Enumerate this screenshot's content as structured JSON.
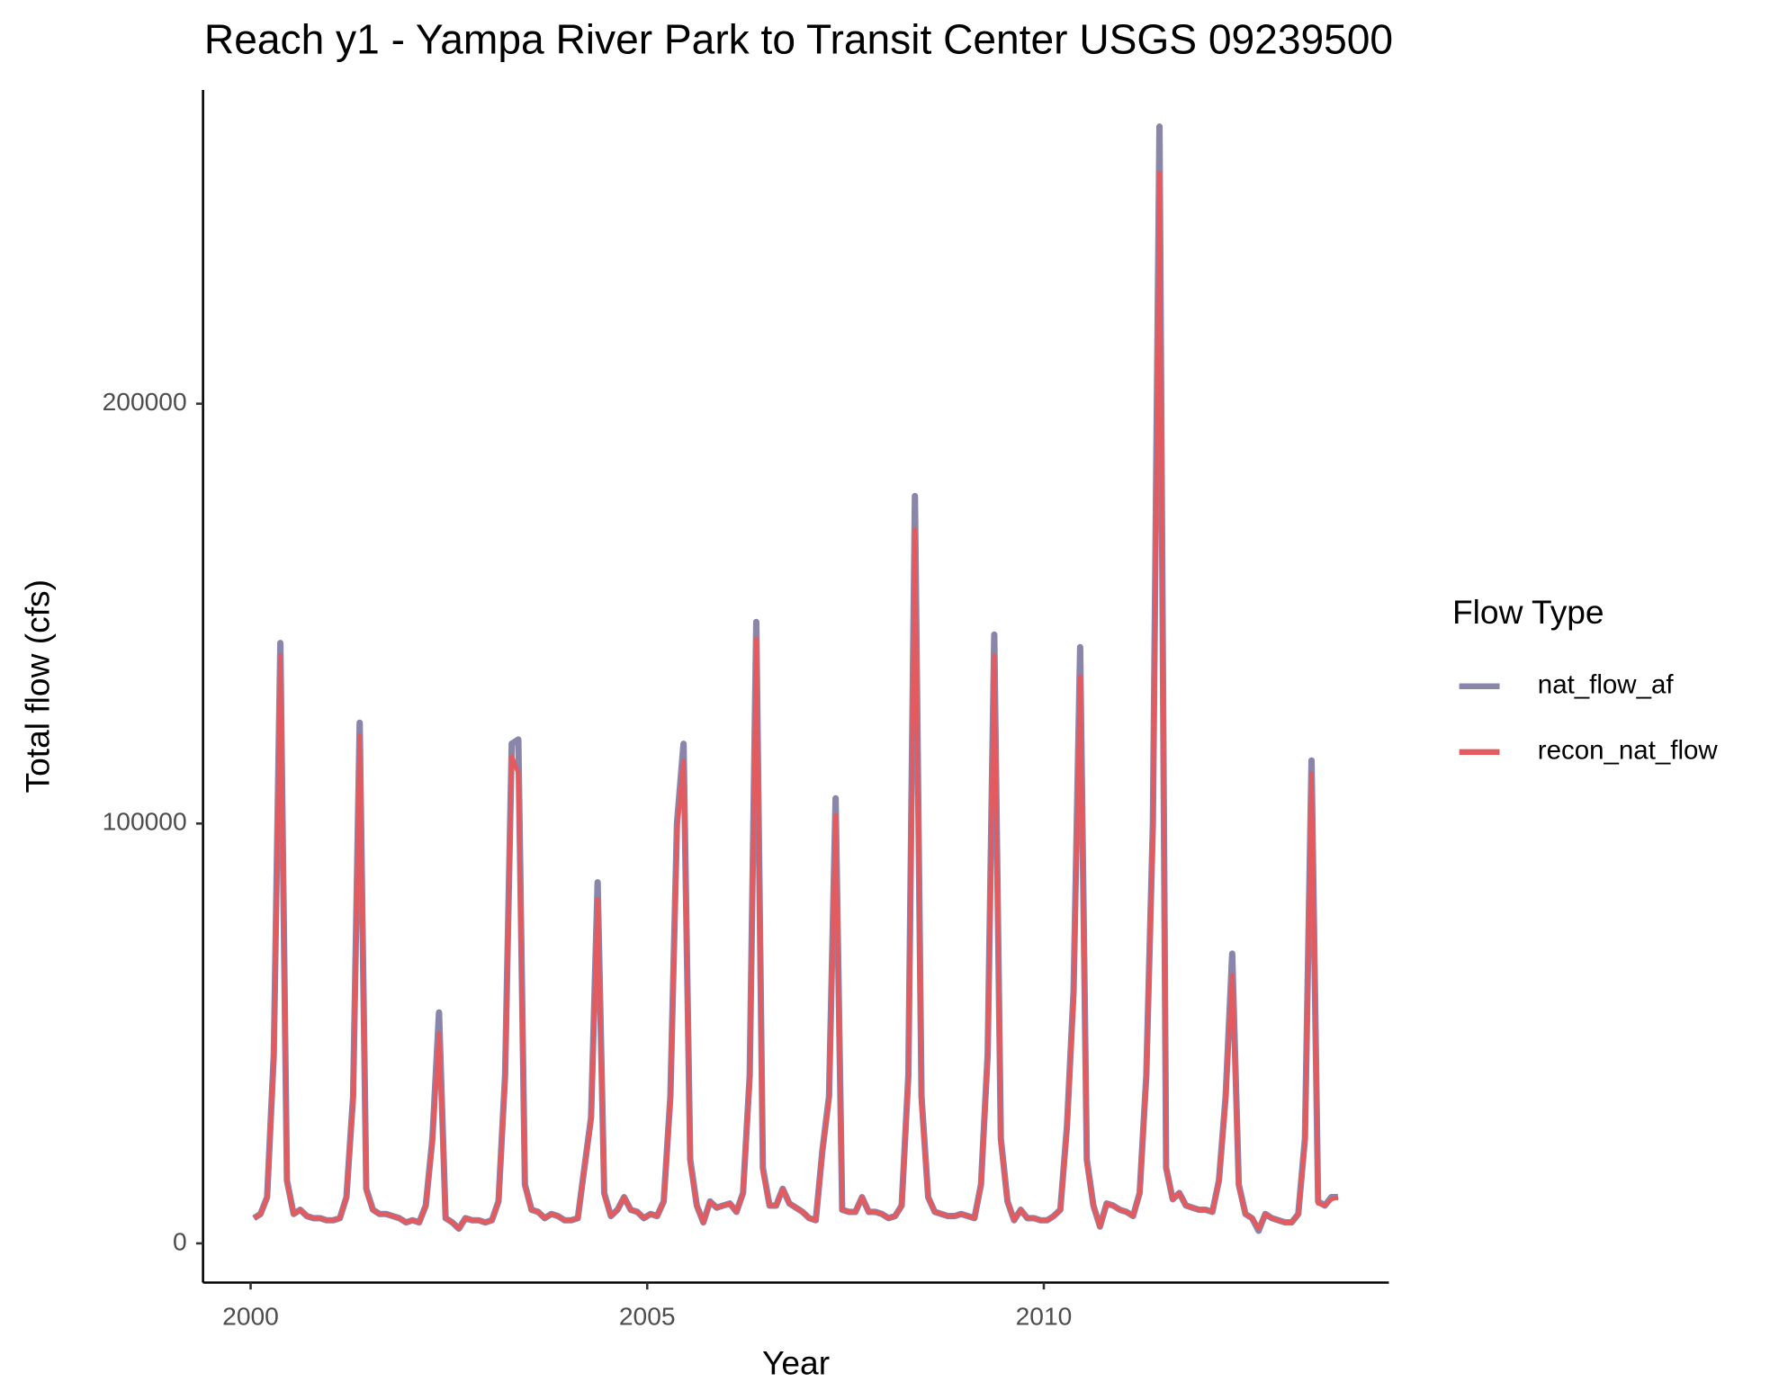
{
  "chart_data": {
    "type": "line",
    "title": "Reach y1 - Yampa River Park to Transit Center USGS 09239500",
    "x_label": "Year",
    "y_label": "Total flow (cfs)",
    "legend_title": "Flow Type",
    "legend_position": "right",
    "grid": false,
    "xlim": [
      1999.4,
      2014.35
    ],
    "xticks": [
      2000,
      2005,
      2010
    ],
    "ylim": [
      -9340,
      274725
    ],
    "yticks": [
      0,
      100000,
      200000
    ],
    "x": [
      2000.042,
      2000.125,
      2000.208,
      2000.292,
      2000.375,
      2000.458,
      2000.542,
      2000.625,
      2000.708,
      2000.792,
      2000.875,
      2000.958,
      2001.042,
      2001.125,
      2001.208,
      2001.292,
      2001.375,
      2001.458,
      2001.542,
      2001.625,
      2001.708,
      2001.792,
      2001.875,
      2001.958,
      2002.042,
      2002.125,
      2002.208,
      2002.292,
      2002.375,
      2002.458,
      2002.542,
      2002.625,
      2002.708,
      2002.792,
      2002.875,
      2002.958,
      2003.042,
      2003.125,
      2003.208,
      2003.292,
      2003.375,
      2003.458,
      2003.542,
      2003.625,
      2003.708,
      2003.792,
      2003.875,
      2003.958,
      2004.042,
      2004.125,
      2004.208,
      2004.292,
      2004.375,
      2004.458,
      2004.542,
      2004.625,
      2004.708,
      2004.792,
      2004.875,
      2004.958,
      2005.042,
      2005.125,
      2005.208,
      2005.292,
      2005.375,
      2005.458,
      2005.542,
      2005.625,
      2005.708,
      2005.792,
      2005.875,
      2005.958,
      2006.042,
      2006.125,
      2006.208,
      2006.292,
      2006.375,
      2006.458,
      2006.542,
      2006.625,
      2006.708,
      2006.792,
      2006.875,
      2006.958,
      2007.042,
      2007.125,
      2007.208,
      2007.292,
      2007.375,
      2007.458,
      2007.542,
      2007.625,
      2007.708,
      2007.792,
      2007.875,
      2007.958,
      2008.042,
      2008.125,
      2008.208,
      2008.292,
      2008.375,
      2008.458,
      2008.542,
      2008.625,
      2008.708,
      2008.792,
      2008.875,
      2008.958,
      2009.042,
      2009.125,
      2009.208,
      2009.292,
      2009.375,
      2009.458,
      2009.542,
      2009.625,
      2009.708,
      2009.792,
      2009.875,
      2009.958,
      2010.042,
      2010.125,
      2010.208,
      2010.292,
      2010.375,
      2010.458,
      2010.542,
      2010.625,
      2010.708,
      2010.792,
      2010.875,
      2010.958,
      2011.042,
      2011.125,
      2011.208,
      2011.292,
      2011.375,
      2011.458,
      2011.542,
      2011.625,
      2011.708,
      2011.792,
      2011.875,
      2011.958,
      2012.042,
      2012.125,
      2012.208,
      2012.292,
      2012.375,
      2012.458,
      2012.542,
      2012.625,
      2012.708,
      2012.792,
      2012.875,
      2012.958,
      2013.042,
      2013.125,
      2013.208,
      2013.292,
      2013.375,
      2013.458,
      2013.542,
      2013.625,
      2013.708
    ],
    "series": [
      {
        "name": "nat_flow_af",
        "color": "#8985ab",
        "values": [
          6000,
          7000,
          11000,
          45000,
          143000,
          15000,
          7000,
          8000,
          6500,
          6000,
          6000,
          5500,
          5500,
          6000,
          11000,
          35000,
          124000,
          13000,
          8000,
          7000,
          7000,
          6500,
          6000,
          5000,
          5500,
          5000,
          9000,
          25000,
          55000,
          6000,
          5000,
          3500,
          6000,
          5500,
          5500,
          5000,
          5500,
          10000,
          40000,
          119000,
          120000,
          14000,
          8000,
          7500,
          6000,
          7000,
          6500,
          5500,
          5500,
          6000,
          18000,
          30000,
          86000,
          12000,
          6500,
          8000,
          11000,
          8000,
          7500,
          6000,
          7000,
          6500,
          10000,
          35000,
          100000,
          119000,
          20000,
          9000,
          5000,
          10000,
          8500,
          9000,
          9500,
          7500,
          12000,
          40000,
          148000,
          18000,
          9000,
          9000,
          13000,
          9500,
          8500,
          7500,
          6000,
          5500,
          22000,
          35000,
          106000,
          8000,
          7500,
          7500,
          11000,
          7500,
          7500,
          7000,
          6000,
          6500,
          9000,
          40000,
          178000,
          35000,
          11000,
          7500,
          7000,
          6500,
          6500,
          7000,
          6500,
          6000,
          14000,
          45000,
          145000,
          25000,
          10000,
          5500,
          8000,
          6000,
          6000,
          5500,
          5500,
          6500,
          8000,
          28000,
          60000,
          142000,
          20000,
          9000,
          4000,
          9500,
          9000,
          8000,
          7500,
          6500,
          12000,
          40000,
          100000,
          266000,
          18000,
          10500,
          12000,
          9000,
          8500,
          8000,
          8000,
          7500,
          15000,
          35000,
          69000,
          14000,
          7000,
          6000,
          3000,
          7000,
          6000,
          5500,
          5000,
          5000,
          7000,
          25000,
          115000,
          10000,
          9000,
          11000,
          11000
        ]
      },
      {
        "name": "recon_nat_flow",
        "color": "#e35b5f",
        "values": [
          6000,
          7000,
          11000,
          44000,
          140000,
          14500,
          7000,
          8000,
          6500,
          6000,
          6000,
          5500,
          5500,
          6000,
          11000,
          34000,
          121000,
          12500,
          8000,
          7000,
          7000,
          6500,
          6000,
          5000,
          5500,
          5000,
          9000,
          24000,
          50000,
          6000,
          5000,
          3500,
          6000,
          5500,
          5500,
          5000,
          5500,
          10000,
          39000,
          116000,
          112000,
          13500,
          8000,
          7500,
          6000,
          7000,
          6500,
          5500,
          5500,
          6000,
          18000,
          29000,
          82000,
          11500,
          6500,
          8000,
          11000,
          8000,
          7500,
          6000,
          7000,
          6500,
          10000,
          34000,
          98000,
          115000,
          19000,
          9000,
          5000,
          10000,
          8500,
          9000,
          9500,
          7500,
          12000,
          39000,
          144000,
          17000,
          9000,
          9000,
          13000,
          9500,
          8500,
          7500,
          6000,
          5500,
          22000,
          34000,
          102000,
          8000,
          7500,
          7500,
          11000,
          7500,
          7500,
          7000,
          6000,
          6500,
          9000,
          39000,
          170000,
          33000,
          11000,
          7500,
          7000,
          6500,
          6500,
          7000,
          6500,
          6000,
          14000,
          44000,
          140000,
          24000,
          10000,
          5500,
          8000,
          6000,
          6000,
          5500,
          5500,
          6500,
          8000,
          27000,
          58000,
          135000,
          19000,
          9000,
          4000,
          9500,
          9000,
          8000,
          7500,
          6500,
          12000,
          39000,
          98000,
          255000,
          18000,
          10500,
          12000,
          9000,
          8500,
          8000,
          8000,
          7500,
          15000,
          34000,
          64000,
          13500,
          7000,
          6000,
          3500,
          7000,
          6000,
          5500,
          5000,
          5000,
          7000,
          24000,
          112000,
          9500,
          9000,
          10500,
          11000
        ]
      }
    ]
  }
}
